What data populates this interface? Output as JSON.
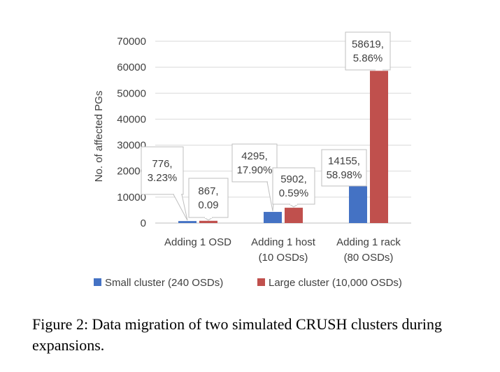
{
  "chart_data": {
    "type": "bar",
    "ylabel": "No. of affected PGs",
    "xlabel": "",
    "ylim": [
      0,
      70000
    ],
    "yticks": [
      0,
      10000,
      20000,
      30000,
      40000,
      50000,
      60000,
      70000
    ],
    "grid": true,
    "legend_position": "bottom",
    "categories": [
      [
        "Adding 1 OSD"
      ],
      [
        "Adding 1 host",
        "(10 OSDs)"
      ],
      [
        "Adding 1 rack",
        "(80 OSDs)"
      ]
    ],
    "series": [
      {
        "name": "Small cluster (240 OSDs)",
        "color": "#4472c4",
        "values": [
          776,
          4295,
          14155
        ],
        "labels": [
          [
            "776,",
            "3.23%"
          ],
          [
            "4295,",
            "17.90%"
          ],
          [
            "14155,",
            "58.98%"
          ]
        ]
      },
      {
        "name": "Large cluster (10,000 OSDs)",
        "color": "#c0504d",
        "values": [
          867,
          5902,
          58619
        ],
        "labels": [
          [
            "867,",
            "0.09"
          ],
          [
            "5902,",
            "0.59%"
          ],
          [
            "58619,",
            "5.86%"
          ]
        ]
      }
    ]
  },
  "caption": "Figure 2: Data migration of two simulated CRUSH clusters during expansions."
}
